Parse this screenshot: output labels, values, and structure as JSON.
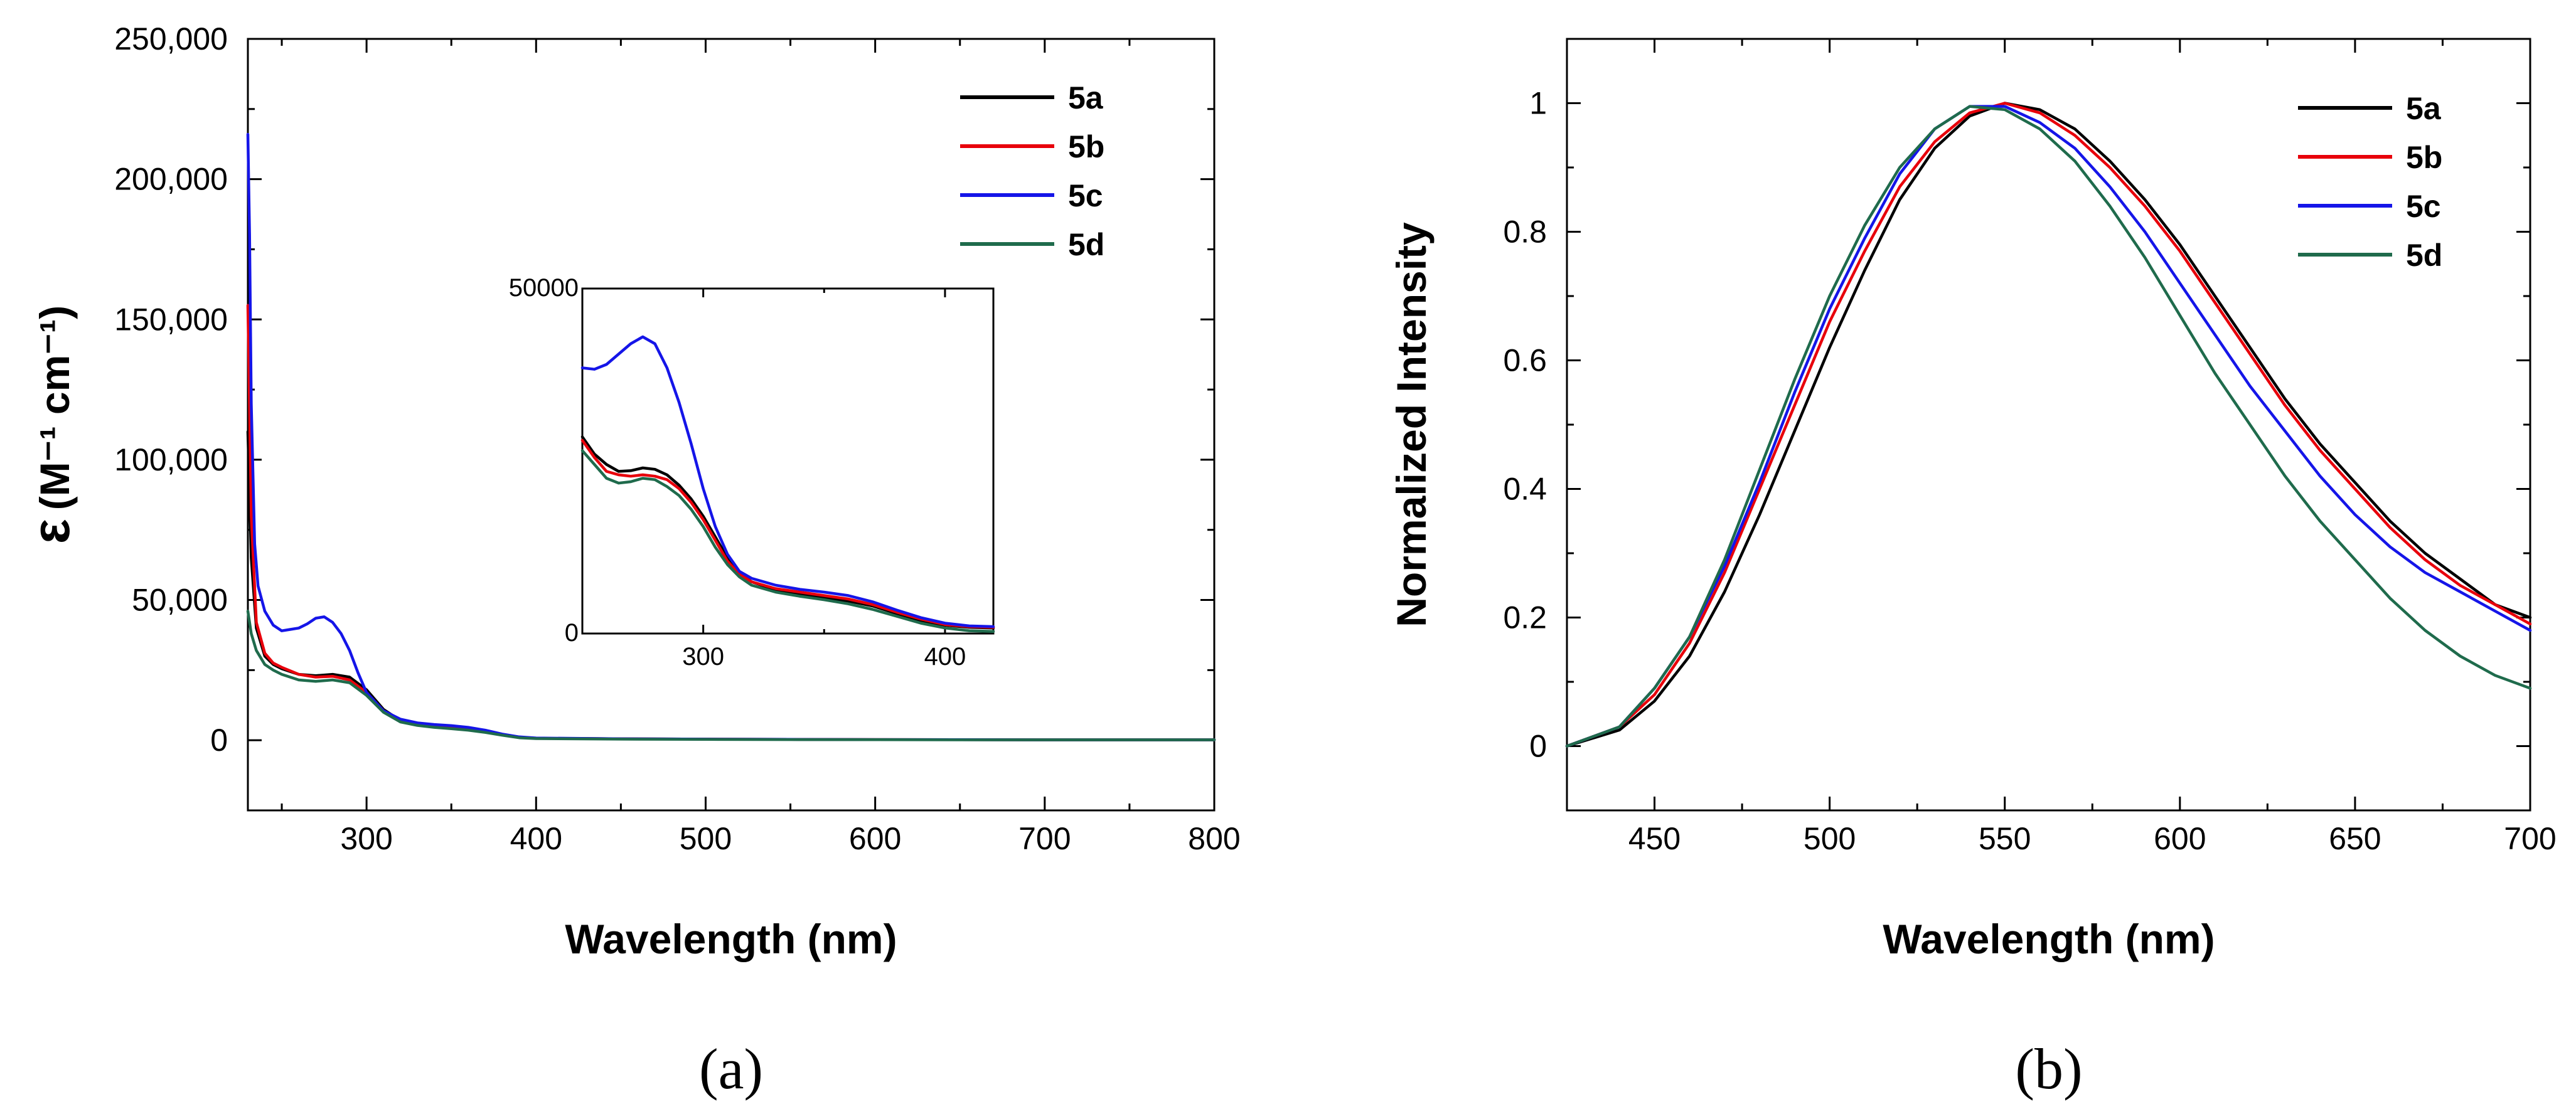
{
  "chart_data": [
    {
      "id": "a",
      "type": "line",
      "panel_label": "(a)",
      "xlabel": "Wavelength (nm)",
      "ylabel_symbol": "ε",
      "ylabel_unit": "(M⁻¹ cm⁻¹)",
      "xlim": [
        230,
        800
      ],
      "ylim": [
        -25000,
        250000
      ],
      "xticks": [
        300,
        400,
        500,
        600,
        700,
        800
      ],
      "xtick_labels": [
        "300",
        "400",
        "500",
        "600",
        "700",
        "800"
      ],
      "yticks": [
        0,
        50000,
        100000,
        150000,
        200000,
        250000
      ],
      "ytick_labels": [
        "0",
        "50,000",
        "100,000",
        "150,000",
        "200,000",
        "250,000"
      ],
      "legend": [
        "5a",
        "5b",
        "5c",
        "5d"
      ],
      "series": [
        {
          "name": "5a",
          "color": "#000000",
          "x": [
            230,
            232,
            235,
            240,
            245,
            250,
            260,
            270,
            280,
            290,
            300,
            310,
            320,
            330,
            340,
            350,
            360,
            370,
            380,
            390,
            400,
            450,
            500,
            550,
            600,
            650,
            700,
            750,
            800
          ],
          "y": [
            110000,
            65000,
            40000,
            30000,
            27000,
            25500,
            23500,
            23000,
            23500,
            22500,
            18000,
            11000,
            7000,
            5800,
            5000,
            4500,
            4000,
            3200,
            2000,
            1000,
            700,
            500,
            400,
            300,
            250,
            200,
            150,
            150,
            150
          ]
        },
        {
          "name": "5b",
          "color": "#e8000b",
          "x": [
            230,
            232,
            235,
            240,
            245,
            250,
            260,
            270,
            280,
            290,
            300,
            310,
            320,
            330,
            340,
            350,
            360,
            370,
            380,
            390,
            400,
            450,
            500,
            550,
            600,
            650,
            700,
            750,
            800
          ],
          "y": [
            155000,
            80000,
            42000,
            31000,
            27500,
            26000,
            23500,
            22500,
            22800,
            21500,
            17000,
            10500,
            7000,
            6000,
            5300,
            4800,
            4200,
            3300,
            2000,
            1000,
            700,
            500,
            400,
            300,
            250,
            200,
            150,
            150,
            150
          ]
        },
        {
          "name": "5c",
          "color": "#1515e8",
          "x": [
            230,
            231,
            232,
            234,
            236,
            240,
            245,
            250,
            255,
            260,
            265,
            270,
            275,
            280,
            285,
            290,
            295,
            300,
            310,
            320,
            330,
            340,
            350,
            360,
            370,
            380,
            390,
            400,
            450,
            500,
            550,
            600,
            650,
            700,
            750,
            800
          ],
          "y": [
            216000,
            180000,
            120000,
            70000,
            55000,
            46000,
            41000,
            39000,
            39500,
            40000,
            41500,
            43500,
            44000,
            42000,
            38000,
            32000,
            24000,
            17000,
            10500,
            7500,
            6200,
            5600,
            5200,
            4600,
            3600,
            2200,
            1200,
            800,
            500,
            400,
            300,
            250,
            200,
            150,
            150,
            150
          ]
        },
        {
          "name": "5d",
          "color": "#1f6b4c",
          "x": [
            230,
            232,
            235,
            240,
            245,
            250,
            260,
            270,
            280,
            290,
            300,
            310,
            320,
            330,
            340,
            350,
            360,
            370,
            380,
            390,
            400,
            450,
            500,
            550,
            600,
            650,
            700,
            750,
            800
          ],
          "y": [
            46000,
            38000,
            32000,
            27000,
            25000,
            23500,
            21500,
            21000,
            21500,
            20500,
            16000,
            10000,
            6500,
            5300,
            4600,
            4100,
            3600,
            2800,
            1800,
            900,
            600,
            400,
            300,
            250,
            200,
            150,
            150,
            150,
            150
          ]
        }
      ]
    },
    {
      "id": "a-inset",
      "type": "line",
      "xlim": [
        250,
        420
      ],
      "ylim": [
        0,
        50000
      ],
      "xticks": [
        300,
        400
      ],
      "xtick_labels": [
        "300",
        "400"
      ],
      "yticks": [
        0,
        50000
      ],
      "ytick_labels": [
        "0",
        "50000"
      ],
      "series": [
        {
          "name": "5a",
          "color": "#000000",
          "x": [
            250,
            255,
            260,
            265,
            270,
            275,
            280,
            285,
            290,
            295,
            300,
            305,
            310,
            315,
            320,
            330,
            340,
            350,
            360,
            370,
            380,
            390,
            400,
            410,
            420
          ],
          "y": [
            28500,
            26000,
            24500,
            23500,
            23600,
            24000,
            23800,
            23000,
            21500,
            19500,
            17000,
            14000,
            11000,
            8800,
            7500,
            6300,
            5700,
            5200,
            4700,
            4000,
            2900,
            1900,
            1200,
            900,
            800
          ]
        },
        {
          "name": "5b",
          "color": "#e8000b",
          "x": [
            250,
            255,
            260,
            265,
            270,
            275,
            280,
            285,
            290,
            295,
            300,
            305,
            310,
            315,
            320,
            330,
            340,
            350,
            360,
            370,
            380,
            390,
            400,
            410,
            420
          ],
          "y": [
            28000,
            25500,
            23500,
            23000,
            22800,
            23000,
            22800,
            22300,
            21000,
            19000,
            16500,
            13500,
            10500,
            8600,
            7500,
            6500,
            6000,
            5500,
            5000,
            4200,
            3100,
            2100,
            1300,
            1000,
            900
          ]
        },
        {
          "name": "5c",
          "color": "#1515e8",
          "x": [
            250,
            255,
            260,
            265,
            270,
            275,
            280,
            285,
            290,
            295,
            300,
            305,
            310,
            315,
            320,
            330,
            340,
            350,
            360,
            370,
            380,
            390,
            400,
            410,
            420
          ],
          "y": [
            38500,
            38300,
            39000,
            40500,
            42000,
            43000,
            42000,
            38500,
            33500,
            27500,
            21000,
            15500,
            11500,
            9000,
            8000,
            7000,
            6400,
            6000,
            5500,
            4600,
            3400,
            2300,
            1500,
            1100,
            1000
          ]
        },
        {
          "name": "5d",
          "color": "#1f6b4c",
          "x": [
            250,
            255,
            260,
            265,
            270,
            275,
            280,
            285,
            290,
            295,
            300,
            305,
            310,
            315,
            320,
            330,
            340,
            350,
            360,
            370,
            380,
            390,
            400,
            410,
            420
          ],
          "y": [
            26500,
            24500,
            22500,
            21800,
            22000,
            22500,
            22300,
            21300,
            20000,
            18000,
            15500,
            12500,
            10000,
            8200,
            7000,
            6000,
            5400,
            4900,
            4300,
            3500,
            2500,
            1500,
            800,
            400,
            300
          ]
        }
      ]
    },
    {
      "id": "b",
      "type": "line",
      "panel_label": "(b)",
      "xlabel": "Wavelength (nm)",
      "ylabel": "Normalized Intensity",
      "xlim": [
        425,
        700
      ],
      "ylim": [
        -0.1,
        1.1
      ],
      "xticks": [
        450,
        500,
        550,
        600,
        650,
        700
      ],
      "xtick_labels": [
        "450",
        "500",
        "550",
        "600",
        "650",
        "700"
      ],
      "yticks": [
        0,
        0.2,
        0.4,
        0.6,
        0.8,
        1
      ],
      "ytick_labels": [
        "0",
        "0.2",
        "0.4",
        "0.6",
        "0.8",
        "1"
      ],
      "legend": [
        "5a",
        "5b",
        "5c",
        "5d"
      ],
      "series": [
        {
          "name": "5a",
          "color": "#000000",
          "x": [
            425,
            440,
            450,
            460,
            470,
            480,
            490,
            500,
            510,
            520,
            530,
            540,
            550,
            560,
            570,
            580,
            590,
            600,
            610,
            620,
            630,
            640,
            650,
            660,
            670,
            680,
            690,
            700
          ],
          "y": [
            0.0,
            0.025,
            0.07,
            0.14,
            0.24,
            0.36,
            0.49,
            0.62,
            0.74,
            0.85,
            0.93,
            0.98,
            1.0,
            0.99,
            0.96,
            0.91,
            0.85,
            0.78,
            0.7,
            0.62,
            0.54,
            0.47,
            0.41,
            0.35,
            0.3,
            0.26,
            0.22,
            0.2
          ]
        },
        {
          "name": "5b",
          "color": "#e8000b",
          "x": [
            425,
            440,
            450,
            460,
            470,
            480,
            490,
            500,
            510,
            520,
            530,
            540,
            550,
            560,
            570,
            580,
            590,
            600,
            610,
            620,
            630,
            640,
            650,
            660,
            670,
            680,
            690,
            700
          ],
          "y": [
            0.0,
            0.03,
            0.08,
            0.16,
            0.27,
            0.4,
            0.53,
            0.66,
            0.77,
            0.87,
            0.94,
            0.985,
            1.0,
            0.985,
            0.95,
            0.9,
            0.84,
            0.77,
            0.69,
            0.61,
            0.53,
            0.46,
            0.4,
            0.34,
            0.29,
            0.25,
            0.22,
            0.19
          ]
        },
        {
          "name": "5c",
          "color": "#1515e8",
          "x": [
            425,
            440,
            450,
            460,
            470,
            480,
            490,
            500,
            510,
            520,
            530,
            540,
            550,
            560,
            570,
            580,
            590,
            600,
            610,
            620,
            630,
            640,
            650,
            660,
            670,
            680,
            690,
            700
          ],
          "y": [
            0.0,
            0.03,
            0.09,
            0.17,
            0.28,
            0.41,
            0.55,
            0.68,
            0.79,
            0.89,
            0.96,
            0.995,
            0.995,
            0.97,
            0.93,
            0.87,
            0.8,
            0.72,
            0.64,
            0.56,
            0.49,
            0.42,
            0.36,
            0.31,
            0.27,
            0.24,
            0.21,
            0.18
          ]
        },
        {
          "name": "5d",
          "color": "#1f6b4c",
          "x": [
            425,
            440,
            450,
            460,
            470,
            480,
            490,
            500,
            510,
            520,
            530,
            540,
            550,
            560,
            570,
            580,
            590,
            600,
            610,
            620,
            630,
            640,
            650,
            660,
            670,
            680,
            690,
            700
          ],
          "y": [
            0.0,
            0.03,
            0.09,
            0.17,
            0.29,
            0.43,
            0.57,
            0.7,
            0.81,
            0.9,
            0.96,
            0.995,
            0.99,
            0.96,
            0.91,
            0.84,
            0.76,
            0.67,
            0.58,
            0.5,
            0.42,
            0.35,
            0.29,
            0.23,
            0.18,
            0.14,
            0.11,
            0.09
          ]
        }
      ]
    }
  ]
}
